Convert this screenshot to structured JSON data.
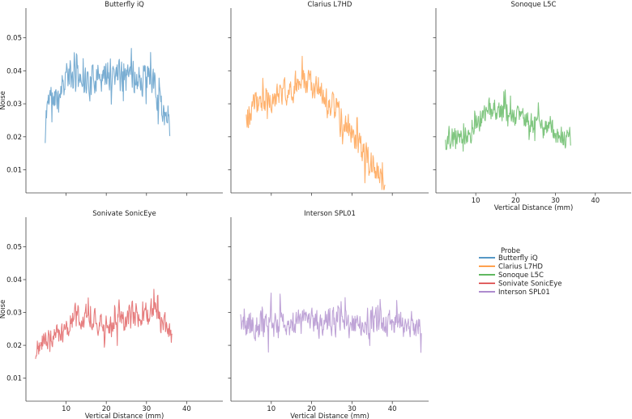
{
  "chart_data": {
    "type": "line",
    "ylabel": "Noise",
    "xlabel": "Vertical Distance (mm)",
    "xlim": [
      0,
      49
    ],
    "ylim": [
      0.003,
      0.059
    ],
    "x_ticks": [
      10,
      20,
      30,
      40
    ],
    "y_ticks": [
      0.01,
      0.02,
      0.03,
      0.04,
      0.05
    ],
    "legend": {
      "title": "Probe",
      "placement": "right",
      "entries": [
        "Butterfly iQ",
        "Clarius L7HD",
        "Sonoque L5C",
        "Sonivate SonicEye",
        "Interson SPL01"
      ]
    },
    "panels": [
      {
        "title": "Butterfly iQ",
        "color": "#1f77b4",
        "x_start": 4.8,
        "x_end": 35.8,
        "knots_x": [
          4.8,
          5.2,
          6,
          7,
          8,
          9,
          10,
          12,
          14,
          16,
          18,
          20,
          22,
          24,
          26,
          28,
          30,
          32,
          33,
          34,
          35,
          35.8
        ],
        "knots_y": [
          0.018,
          0.03,
          0.033,
          0.032,
          0.034,
          0.036,
          0.039,
          0.037,
          0.038,
          0.036,
          0.039,
          0.038,
          0.04,
          0.038,
          0.039,
          0.037,
          0.038,
          0.035,
          0.03,
          0.028,
          0.027,
          0.025
        ],
        "amplitude": 0.0075,
        "seed": 11
      },
      {
        "title": "Clarius L7HD",
        "color": "#ff7f0e",
        "x_start": 3.8,
        "x_end": 38.2,
        "knots_x": [
          3.8,
          6,
          8,
          10,
          12,
          14,
          16,
          18,
          20,
          22,
          24,
          26,
          28,
          30,
          32,
          34,
          36,
          38.2
        ],
        "knots_y": [
          0.025,
          0.03,
          0.031,
          0.032,
          0.033,
          0.034,
          0.035,
          0.036,
          0.036,
          0.034,
          0.03,
          0.028,
          0.025,
          0.021,
          0.017,
          0.013,
          0.01,
          0.006
        ],
        "amplitude": 0.0065,
        "seed": 23
      },
      {
        "title": "Sonoque L5C",
        "color": "#2ca02c",
        "x_start": 2.4,
        "x_end": 33.8,
        "knots_x": [
          2.4,
          5,
          8,
          10,
          12,
          14,
          16,
          18,
          20,
          22,
          24,
          26,
          28,
          30,
          32,
          33.8
        ],
        "knots_y": [
          0.019,
          0.02,
          0.021,
          0.023,
          0.026,
          0.029,
          0.028,
          0.027,
          0.026,
          0.025,
          0.024,
          0.023,
          0.022,
          0.02,
          0.02,
          0.021
        ],
        "amplitude": 0.0055,
        "seed": 37
      },
      {
        "title": "Sonivate SonicEye",
        "color": "#d62728",
        "x_start": 2.4,
        "x_end": 36.4,
        "knots_x": [
          2.4,
          4,
          6,
          8,
          10,
          12,
          14,
          16,
          18,
          20,
          22,
          24,
          26,
          28,
          30,
          32,
          34,
          36.4
        ],
        "knots_y": [
          0.018,
          0.021,
          0.023,
          0.023,
          0.025,
          0.029,
          0.028,
          0.028,
          0.027,
          0.026,
          0.026,
          0.027,
          0.03,
          0.029,
          0.031,
          0.032,
          0.027,
          0.023
        ],
        "amplitude": 0.0055,
        "seed": 51
      },
      {
        "title": "Interson SPL01",
        "color": "#9467bd",
        "x_start": 2.4,
        "x_end": 47.2,
        "knots_x": [
          2.4,
          10,
          20,
          30,
          40,
          47.2
        ],
        "knots_y": [
          0.026,
          0.026,
          0.027,
          0.027,
          0.027,
          0.026
        ],
        "amplitude": 0.0065,
        "seed": 67
      }
    ]
  }
}
